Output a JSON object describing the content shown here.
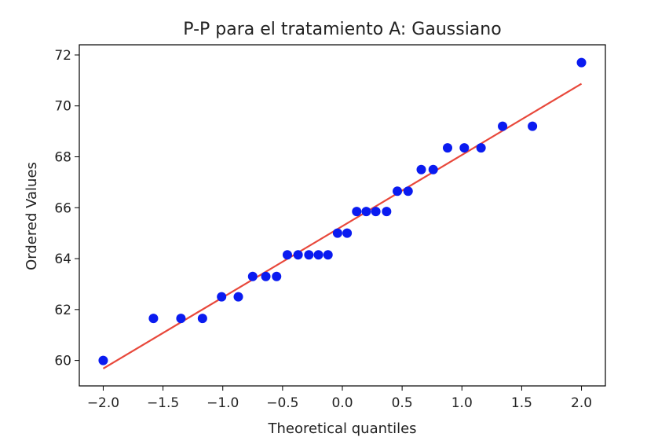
{
  "chart_data": {
    "type": "scatter",
    "title": "P-P para el tratamiento A: Gaussiano",
    "xlabel": "Theoretical quantiles",
    "ylabel": "Ordered Values",
    "xlim": [
      -2.2,
      2.2
    ],
    "ylim": [
      59.0,
      72.4
    ],
    "xticks": [
      -2.0,
      -1.5,
      -1.0,
      -0.5,
      0.0,
      0.5,
      1.0,
      1.5,
      2.0
    ],
    "xtick_labels": [
      "−2.0",
      "−1.5",
      "−1.0",
      "−0.5",
      "0.0",
      "0.5",
      "1.0",
      "1.5",
      "2.0"
    ],
    "yticks": [
      60,
      62,
      64,
      66,
      68,
      70,
      72
    ],
    "ytick_labels": [
      "60",
      "62",
      "64",
      "66",
      "68",
      "70",
      "72"
    ],
    "grid": false,
    "series": [
      {
        "kind": "points",
        "color": "#0a1bf0",
        "x": [
          -2.0,
          -1.58,
          -1.35,
          -1.17,
          -1.01,
          -0.87,
          -0.75,
          -0.64,
          -0.55,
          -0.46,
          -0.37,
          -0.28,
          -0.2,
          -0.12,
          -0.04,
          0.04,
          0.12,
          0.2,
          0.28,
          0.37,
          0.46,
          0.55,
          0.66,
          0.76,
          0.88,
          1.02,
          1.16,
          1.34,
          1.59,
          2.0
        ],
        "y": [
          60.0,
          61.65,
          61.65,
          61.65,
          62.5,
          62.5,
          63.3,
          63.3,
          63.3,
          64.15,
          64.15,
          64.15,
          64.15,
          64.15,
          65.0,
          65.0,
          65.85,
          65.85,
          65.85,
          65.85,
          66.65,
          66.65,
          67.5,
          67.5,
          68.35,
          68.35,
          68.35,
          69.2,
          69.2,
          71.7
        ]
      },
      {
        "kind": "fit-line",
        "color": "#e8483b",
        "x": [
          -2.0,
          2.0
        ],
        "y": [
          59.68,
          70.87
        ]
      }
    ]
  }
}
